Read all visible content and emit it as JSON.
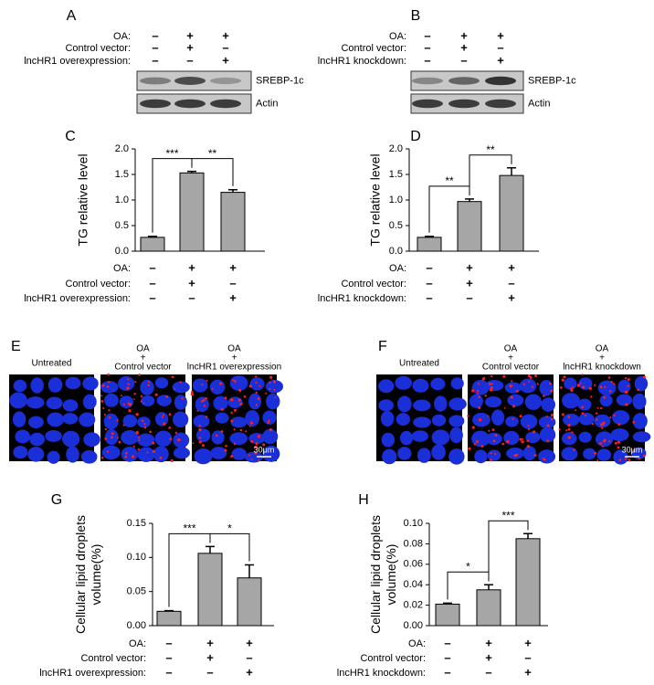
{
  "blots": [
    {
      "label": "A",
      "conditions": [
        {
          "name": "OA:",
          "signs": [
            "–",
            "+",
            "+"
          ]
        },
        {
          "name": "Control vector:",
          "signs": [
            "–",
            "+",
            "–"
          ]
        },
        {
          "name": "lncHR1 overexpression:",
          "signs": [
            "–",
            "–",
            "+"
          ]
        }
      ],
      "bands": [
        "SREBP-1c",
        "Actin"
      ]
    },
    {
      "label": "B",
      "conditions": [
        {
          "name": "OA:",
          "signs": [
            "–",
            "+",
            "+"
          ]
        },
        {
          "name": "Control vector:",
          "signs": [
            "–",
            "+",
            "–"
          ]
        },
        {
          "name": "lncHR1 knockdown:",
          "signs": [
            "–",
            "–",
            "+"
          ]
        }
      ],
      "bands": [
        "SREBP-1c",
        "Actin"
      ]
    }
  ],
  "images": [
    {
      "label": "E",
      "captions": [
        [
          "Untreated"
        ],
        [
          "OA",
          "+",
          "Control vector"
        ],
        [
          "OA",
          "+",
          "lncHR1 overexpression"
        ]
      ],
      "scale_bar": "30μm"
    },
    {
      "label": "F",
      "captions": [
        [
          "Untreated"
        ],
        [
          "OA",
          "+",
          "Control vector"
        ],
        [
          "OA",
          "+",
          "lncHR1 knockdown"
        ]
      ],
      "scale_bar": "30μm"
    }
  ],
  "chart_data": [
    {
      "type": "bar",
      "label": "C",
      "y_label": [
        "TG relative level"
      ],
      "categories": [
        null,
        null,
        null
      ],
      "values": [
        0.27,
        1.53,
        1.15
      ],
      "errors": [
        0.02,
        0.03,
        0.05
      ],
      "color": "#a6a6a6",
      "ylim": [
        0,
        2
      ],
      "yticks": [
        {
          "value": 0,
          "label": "0.0"
        },
        0.5,
        {
          "value": 1,
          "label": "1.0"
        },
        1.5,
        {
          "value": 2,
          "label": "2.0"
        }
      ],
      "annotations": [
        "***",
        "**"
      ],
      "conditions": [
        {
          "name": "OA:",
          "signs": [
            "–",
            "+",
            "+"
          ]
        },
        {
          "name": "Control vector:",
          "signs": [
            "–",
            "+",
            "–"
          ]
        },
        {
          "name": "lncHR1 overexpression:",
          "signs": [
            "–",
            "–",
            "+"
          ]
        }
      ]
    },
    {
      "type": "bar",
      "label": "D",
      "y_label": [
        "TG relative level"
      ],
      "categories": [
        null,
        null,
        null
      ],
      "values": [
        0.27,
        0.97,
        1.48
      ],
      "errors": [
        0.02,
        0.05,
        0.15
      ],
      "color": "#a6a6a6",
      "ylim": [
        0,
        2
      ],
      "yticks": [
        {
          "value": 0,
          "label": "0.0"
        },
        0.5,
        {
          "value": 1,
          "label": "1.0"
        },
        1.5,
        {
          "value": 2,
          "label": "2.0"
        }
      ],
      "annotations": [
        "**",
        "**"
      ],
      "conditions": [
        {
          "name": "OA:",
          "signs": [
            "–",
            "+",
            "+"
          ]
        },
        {
          "name": "Control vector:",
          "signs": [
            "–",
            "+",
            "–"
          ]
        },
        {
          "name": "lncHR1 knockdown:",
          "signs": [
            "–",
            "–",
            "+"
          ]
        }
      ]
    },
    {
      "type": "bar",
      "label": "G",
      "y_label": [
        "Cellular lipid droplets",
        "volume(%)"
      ],
      "categories": [
        null,
        null,
        null
      ],
      "values": [
        0.021,
        0.106,
        0.07
      ],
      "errors": [
        0.001,
        0.01,
        0.019
      ],
      "color": "#a6a6a6",
      "ylim": [
        0,
        0.15
      ],
      "yticks": [
        {
          "value": 0,
          "label": "0.00"
        },
        0.05,
        {
          "value": 0.1,
          "label": "0.10"
        },
        0.15
      ],
      "annotations": [
        "***",
        "*"
      ],
      "conditions": [
        {
          "name": "OA:",
          "signs": [
            "–",
            "+",
            "+"
          ]
        },
        {
          "name": "Control vector:",
          "signs": [
            "–",
            "+",
            "–"
          ]
        },
        {
          "name": "lncHR1 overexpression:",
          "signs": [
            "–",
            "–",
            "+"
          ]
        }
      ]
    },
    {
      "type": "bar",
      "label": "H",
      "y_label": [
        "Cellular lipid droplets",
        "volume(%)"
      ],
      "categories": [
        null,
        null,
        null
      ],
      "values": [
        0.021,
        0.035,
        0.085
      ],
      "errors": [
        0.001,
        0.005,
        0.005
      ],
      "color": "#a6a6a6",
      "ylim": [
        0,
        0.1
      ],
      "yticks": [
        {
          "value": 0,
          "label": "0.00"
        },
        0.02,
        0.04,
        0.06,
        0.08,
        {
          "value": 0.1,
          "label": "0.10"
        }
      ],
      "annotations": [
        "*",
        "***"
      ],
      "conditions": [
        {
          "name": "OA:",
          "signs": [
            "–",
            "+",
            "+"
          ]
        },
        {
          "name": "Control vector:",
          "signs": [
            "–",
            "+",
            "–"
          ]
        },
        {
          "name": "lncHR1 knockdown:",
          "signs": [
            "–",
            "–",
            "+"
          ]
        }
      ]
    }
  ]
}
